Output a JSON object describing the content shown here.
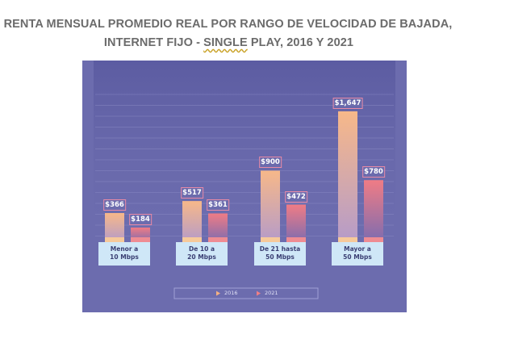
{
  "chart_data": {
    "type": "bar",
    "title_line1": "RENTA MENSUAL PROMEDIO REAL POR RANGO DE VELOCIDAD DE BAJADA,",
    "title_line2_pre": "INTERNET FIJO - ",
    "title_line2_mark": "SINGLE",
    "title_line2_post": " PLAY, 2016 Y 2021",
    "categories": [
      [
        "Menor a",
        "10 Mbps"
      ],
      [
        "De 10 a",
        "20 Mbps"
      ],
      [
        "De 21 hasta",
        "50 Mbps"
      ],
      [
        "Mayor a",
        "50 Mbps"
      ]
    ],
    "series": [
      {
        "name": "2016",
        "values": [
          366,
          517,
          900,
          1647
        ],
        "labels": [
          "$366",
          "$517",
          "$900",
          "$1,647"
        ],
        "color": "#f4b183"
      },
      {
        "name": "2021",
        "values": [
          184,
          361,
          472,
          780
        ],
        "labels": [
          "$184",
          "$361",
          "$472",
          "$780"
        ],
        "color": "#ef7f86"
      }
    ],
    "ylim": [
      0,
      1900
    ],
    "grid": true,
    "legend": "bottom-center",
    "colors": {
      "background": "#6c6cae",
      "label_box": "#cfe7f7"
    }
  }
}
